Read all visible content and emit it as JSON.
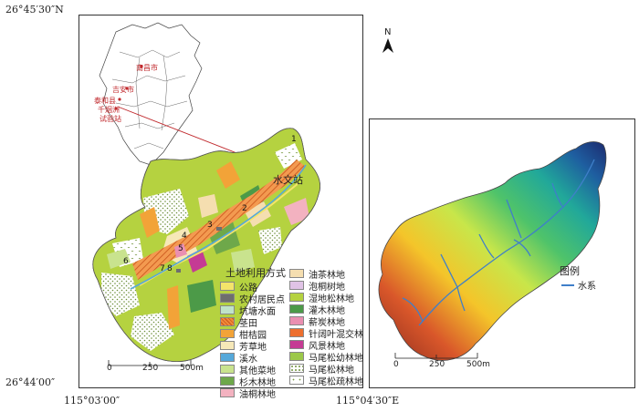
{
  "coords": {
    "top_left": "26°45′30″N",
    "bottom_left": "26°44′00″",
    "bottom_x_left": "115°03′00″",
    "bottom_x_right": "115°04′30″E"
  },
  "left_map": {
    "station_label": "水文站",
    "inset_labels": {
      "nanchang": "南昌市",
      "jian": "吉安市",
      "taihe": "泰和县",
      "qianyanzhou": "千烟洲",
      "shiyanzhan": "试验站"
    },
    "site_numbers": [
      "1",
      "2",
      "3",
      "4",
      "5",
      "6",
      "7",
      "8"
    ],
    "legend_title": "土地利用方式",
    "legend_col1": [
      {
        "label": "公路",
        "color": "#f4e46a",
        "pattern": "solid"
      },
      {
        "label": "农村居民点",
        "color": "#6e6e6e",
        "pattern": "solid"
      },
      {
        "label": "坑塘水面",
        "color": "#bfe3c9",
        "pattern": "solid"
      },
      {
        "label": "茎田",
        "color": "#f08a3a",
        "pattern": "hatch"
      },
      {
        "label": "柑桔园",
        "color": "#f2a338",
        "pattern": "solid"
      },
      {
        "label": "芳草地",
        "color": "#f6e8b8",
        "pattern": "solid"
      },
      {
        "label": "溪水",
        "color": "#55a8da",
        "pattern": "solid"
      },
      {
        "label": "其他菜地",
        "color": "#c9e38e",
        "pattern": "solid"
      },
      {
        "label": "杉木林地",
        "color": "#6ea84a",
        "pattern": "solid"
      },
      {
        "label": "油桐林地",
        "color": "#f3b2c0",
        "pattern": "solid"
      }
    ],
    "legend_col2": [
      {
        "label": "油茶林地",
        "color": "#f5deb0",
        "pattern": "solid"
      },
      {
        "label": "泡桐树地",
        "color": "#e0c3e6",
        "pattern": "solid"
      },
      {
        "label": "湿地松林地",
        "color": "#b5d240",
        "pattern": "solid"
      },
      {
        "label": "灌木林地",
        "color": "#4c9a48",
        "pattern": "solid"
      },
      {
        "label": "薪炭林地",
        "color": "#ea8fb1",
        "pattern": "solid"
      },
      {
        "label": "针阔叶混交林",
        "color": "#ed6f2e",
        "pattern": "solid"
      },
      {
        "label": "风景林地",
        "color": "#c53b94",
        "pattern": "solid"
      },
      {
        "label": "马尾松幼林地",
        "color": "#9cc84a",
        "pattern": "solid"
      },
      {
        "label": "马尾松林地",
        "color": "#ffffff",
        "pattern": "dots"
      },
      {
        "label": "马尾松疏林地",
        "color": "#ffffff",
        "pattern": "sparse"
      }
    ],
    "scale": {
      "labels": [
        "0",
        "250",
        "500m"
      ]
    }
  },
  "right_map": {
    "north": "N",
    "legend_title": "图例",
    "legend_item": "水系",
    "river_color": "#3f7fc9",
    "scale": {
      "labels": [
        "0",
        "250",
        "500m"
      ]
    }
  }
}
